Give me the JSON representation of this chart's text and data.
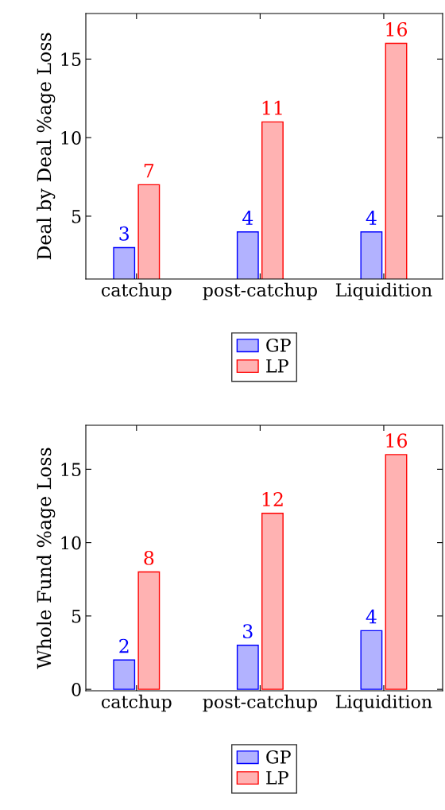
{
  "chart_data": [
    {
      "type": "bar",
      "ylabel": "Deal by Deal %age Loss",
      "categories": [
        "catchup",
        "post-catchup",
        "Liquidition"
      ],
      "series": [
        {
          "name": "GP",
          "color": "#0000ff",
          "values": [
            3,
            4,
            4
          ]
        },
        {
          "name": "LP",
          "color": "#ff0000",
          "values": [
            7,
            11,
            16
          ]
        }
      ],
      "ylim": [
        1,
        17.9
      ],
      "yticks": [
        5,
        10,
        15
      ],
      "data_labels": true,
      "legend": "bottom",
      "grid": false
    },
    {
      "type": "bar",
      "ylabel": "Whole Fund %age Loss",
      "categories": [
        "catchup",
        "post-catchup",
        "Liquidition"
      ],
      "series": [
        {
          "name": "GP",
          "color": "#0000ff",
          "values": [
            2,
            3,
            4
          ]
        },
        {
          "name": "LP",
          "color": "#ff0000",
          "values": [
            8,
            12,
            16
          ]
        }
      ],
      "ylim": [
        -0.1,
        18
      ],
      "yticks": [
        0,
        5,
        10,
        15
      ],
      "data_labels": true,
      "legend": "bottom",
      "grid": false
    }
  ]
}
